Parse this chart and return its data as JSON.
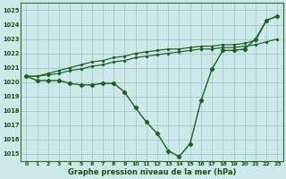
{
  "xlabel": "Graphe pression niveau de la mer (hPa)",
  "background_color": "#cce8e8",
  "grid_color": "#aacece",
  "line_color": "#1a6020",
  "ylim": [
    1014.5,
    1025.5
  ],
  "xlim": [
    -0.5,
    23.5
  ],
  "yticks": [
    1015,
    1016,
    1017,
    1018,
    1019,
    1020,
    1021,
    1022,
    1023,
    1024,
    1025
  ],
  "xticks": [
    0,
    1,
    2,
    3,
    4,
    5,
    6,
    7,
    8,
    9,
    10,
    11,
    12,
    13,
    14,
    15,
    16,
    17,
    18,
    19,
    20,
    21,
    22,
    23
  ],
  "series1": [
    1020.4,
    1020.1,
    1020.1,
    1020.1,
    1019.9,
    1019.8,
    1019.8,
    1019.9,
    1019.9,
    1019.3,
    1018.2,
    1017.2,
    1016.4,
    1015.2,
    1014.8,
    1015.7,
    1018.7,
    1020.9,
    1022.2,
    1022.2,
    1022.3,
    1023.0,
    1024.3,
    1024.6
  ],
  "series2": [
    1020.4,
    1020.4,
    1020.5,
    1020.6,
    1020.8,
    1020.9,
    1021.1,
    1021.2,
    1021.4,
    1021.5,
    1021.7,
    1021.8,
    1021.9,
    1022.0,
    1022.1,
    1022.2,
    1022.3,
    1022.3,
    1022.4,
    1022.4,
    1022.5,
    1022.6,
    1022.8,
    1023.0
  ],
  "series3": [
    1020.4,
    1020.4,
    1020.6,
    1020.8,
    1021.0,
    1021.2,
    1021.4,
    1021.5,
    1021.7,
    1021.8,
    1022.0,
    1022.1,
    1022.2,
    1022.3,
    1022.3,
    1022.4,
    1022.5,
    1022.5,
    1022.6,
    1022.6,
    1022.7,
    1022.9,
    1024.3,
    1024.6
  ]
}
